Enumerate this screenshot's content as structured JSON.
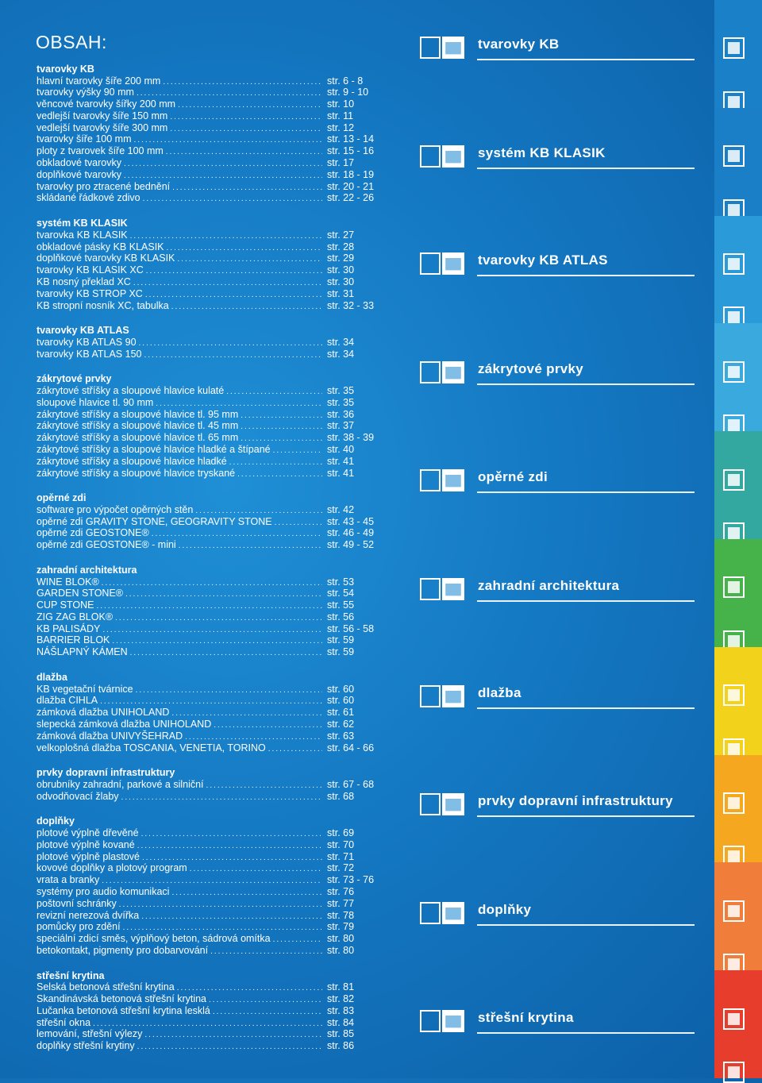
{
  "title": "OBSAH:",
  "sections": [
    {
      "head": "tvarovky KB",
      "entries": [
        {
          "t": "hlavní tvarovky šíře 200 mm",
          "p": "str. 6 - 8"
        },
        {
          "t": "tvarovky výšky 90 mm",
          "p": "str. 9 - 10"
        },
        {
          "t": "věncové tvarovky šířky 200 mm",
          "p": "str. 10"
        },
        {
          "t": "vedlejší tvarovky šíře 150 mm",
          "p": "str. 11"
        },
        {
          "t": "vedlejší tvarovky šíře 300 mm",
          "p": "str. 12"
        },
        {
          "t": "tvarovky šíře 100 mm",
          "p": "str. 13 - 14"
        },
        {
          "t": "ploty z tvarovek šíře 100 mm",
          "p": "str. 15 - 16"
        },
        {
          "t": "obkladové tvarovky",
          "p": "str. 17"
        },
        {
          "t": "doplňkové tvarovky",
          "p": "str. 18 - 19"
        },
        {
          "t": "tvarovky pro ztracené bednění",
          "p": "str. 20 - 21"
        },
        {
          "t": "skládané řádkové zdivo",
          "p": "str. 22 - 26"
        }
      ]
    },
    {
      "head": "systém KB KLASIK",
      "entries": [
        {
          "t": "tvarovka KB KLASIK",
          "p": "str. 27"
        },
        {
          "t": "obkladové pásky KB KLASIK",
          "p": "str. 28"
        },
        {
          "t": "doplňkové tvarovky KB KLASIK",
          "p": "str. 29"
        },
        {
          "t": "tvarovky KB KLASIK XC",
          "p": "str. 30"
        },
        {
          "t": "KB nosný překlad XC",
          "p": "str. 30"
        },
        {
          "t": "tvarovky KB STROP XC",
          "p": "str. 31"
        },
        {
          "t": "KB stropní nosník XC, tabulka",
          "p": "str. 32 - 33"
        }
      ]
    },
    {
      "head": "tvarovky KB ATLAS",
      "entries": [
        {
          "t": "tvarovky KB ATLAS 90",
          "p": "str. 34"
        },
        {
          "t": "tvarovky KB ATLAS 150",
          "p": "str. 34"
        }
      ]
    },
    {
      "head": "zákrytové prvky",
      "entries": [
        {
          "t": "zákrytové stříšky a sloupové hlavice kulaté",
          "p": "str. 35"
        },
        {
          "t": "sloupové hlavice tl. 90 mm",
          "p": "str. 35"
        },
        {
          "t": "zákrytové stříšky a sloupové hlavice tl. 95 mm",
          "p": "str. 36"
        },
        {
          "t": "zákrytové stříšky a sloupové hlavice tl. 45 mm",
          "p": "str. 37"
        },
        {
          "t": "zákrytové stříšky a sloupové hlavice tl. 65 mm",
          "p": "str. 38 - 39"
        },
        {
          "t": "zákrytové stříšky a sloupové hlavice hladké a štípané",
          "p": "str. 40"
        },
        {
          "t": "zákrytové stříšky a sloupové hlavice hladké",
          "p": "str. 41"
        },
        {
          "t": "zákrytové stříšky a sloupové hlavice tryskané",
          "p": "str. 41"
        }
      ]
    },
    {
      "head": "opěrné zdi",
      "entries": [
        {
          "t": "software pro výpočet opěrných stěn",
          "p": "str. 42"
        },
        {
          "t": "opěrné zdi GRAVITY STONE, GEOGRAVITY STONE",
          "p": "str. 43 - 45"
        },
        {
          "t": "opěrné zdi GEOSTONE®",
          "p": "str. 46 - 49"
        },
        {
          "t": "opěrné zdi GEOSTONE® - mini",
          "p": "str. 49 - 52"
        }
      ]
    },
    {
      "head": "zahradní architektura",
      "entries": [
        {
          "t": "WINE BLOK®",
          "p": "str. 53"
        },
        {
          "t": "GARDEN STONE®",
          "p": "str. 54"
        },
        {
          "t": "CUP STONE",
          "p": "str. 55"
        },
        {
          "t": "ZIG ZAG BLOK®",
          "p": "str. 56"
        },
        {
          "t": "KB PALISÁDY",
          "p": "str. 56 - 58"
        },
        {
          "t": "BARRIER BLOK",
          "p": "str. 59"
        },
        {
          "t": "NÁŠLAPNÝ KÁMEN",
          "p": "str. 59"
        }
      ]
    },
    {
      "head": "dlažba",
      "entries": [
        {
          "t": "KB vegetační tvárnice",
          "p": "str. 60"
        },
        {
          "t": "dlažba CIHLA",
          "p": "str. 60"
        },
        {
          "t": "zámková dlažba UNIHOLAND",
          "p": "str. 61"
        },
        {
          "t": "slepecká zámková dlažba UNIHOLAND",
          "p": "str. 62"
        },
        {
          "t": "zámková dlažba UNIVYŠEHRAD",
          "p": "str. 63"
        },
        {
          "t": "velkoplošná dlažba TOSCANIA, VENETIA, TORINO",
          "p": "str. 64 - 66"
        }
      ]
    },
    {
      "head": "prvky dopravní infrastruktury",
      "entries": [
        {
          "t": "obrubníky zahradní, parkové a silniční",
          "p": "str. 67 - 68"
        },
        {
          "t": "odvodňovací žlaby",
          "p": "str. 68"
        }
      ]
    },
    {
      "head": "doplňky",
      "entries": [
        {
          "t": "plotové výplně dřevěné",
          "p": "str. 69"
        },
        {
          "t": "plotové výplně kované",
          "p": "str. 70"
        },
        {
          "t": "plotové výplně plastové",
          "p": "str. 71"
        },
        {
          "t": "kovové doplňky a plotový program",
          "p": "str. 72"
        },
        {
          "t": "vrata a branky",
          "p": "str. 73 - 76"
        },
        {
          "t": "systémy pro audio komunikaci",
          "p": "str. 76"
        },
        {
          "t": "poštovní schránky",
          "p": "str. 77"
        },
        {
          "t": "revizní nerezová dvířka",
          "p": "str. 78"
        },
        {
          "t": "pomůcky pro zdění",
          "p": "str. 79"
        },
        {
          "t": "speciální zdicí směs, výplňový beton, sádrová omítka",
          "p": "str. 80"
        },
        {
          "t": "betokontakt, pigmenty pro dobarvování",
          "p": "str. 80"
        }
      ]
    },
    {
      "head": "střešní krytina",
      "entries": [
        {
          "t": "Selská betonová střešní krytina",
          "p": "str. 81"
        },
        {
          "t": "Skandinávská betonová střešní krytina",
          "p": "str. 82"
        },
        {
          "t": "Lučanka betonová střešní krytina lesklá",
          "p": "str. 83"
        },
        {
          "t": "střešní okna",
          "p": "str. 84"
        },
        {
          "t": "lemování, střešní výlezy",
          "p": "str. 85"
        },
        {
          "t": "doplňky střešní krytiny",
          "p": "str. 86"
        }
      ]
    }
  ],
  "categories": [
    {
      "label": "tvarovky KB",
      "icon": "block-icon"
    },
    {
      "label": "systém KB KLASIK",
      "icon": "klasik-block-icon"
    },
    {
      "label": "tvarovky KB ATLAS",
      "icon": "atlas-block-icon"
    },
    {
      "label": "zákrytové prvky",
      "icon": "coping-icon"
    },
    {
      "label": "opěrné zdi",
      "icon": "retaining-wall-icon"
    },
    {
      "label": "zahradní architektura",
      "icon": "garden-icon"
    },
    {
      "label": "dlažba",
      "icon": "paving-icon"
    },
    {
      "label": "prvky dopravní infrastruktury",
      "icon": "road-icon"
    },
    {
      "label": "doplňky",
      "icon": "accessories-icon"
    },
    {
      "label": "střešní krytina",
      "icon": "roof-icon"
    }
  ],
  "strip_colors": [
    "#1a80c8",
    "#1a7fc6",
    "#2a9bd8",
    "#3aa9de",
    "#32a8a0",
    "#45b34a",
    "#f2d21a",
    "#f5a81f",
    "#f07e3a",
    "#e63d2c"
  ]
}
